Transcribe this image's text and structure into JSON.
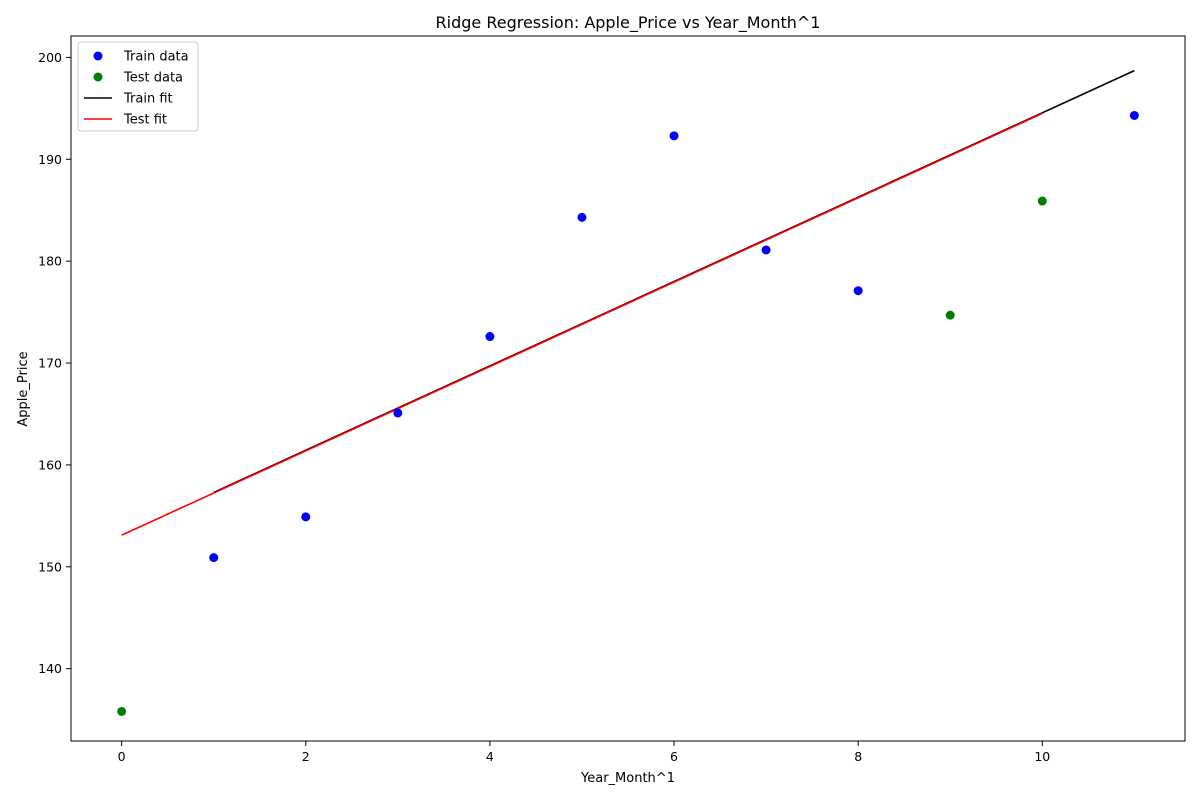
{
  "chart_data": {
    "type": "scatter",
    "title": "Ridge Regression: Apple_Price vs Year_Month^1",
    "xlabel": "Year_Month^1",
    "ylabel": "Apple_Price",
    "xlim": [
      -0.55,
      11.55
    ],
    "ylim": [
      132.9,
      202.1
    ],
    "xticks": [
      0,
      2,
      4,
      6,
      8,
      10
    ],
    "yticks": [
      140,
      150,
      160,
      170,
      180,
      190,
      200
    ],
    "grid": false,
    "legend_position": "upper left",
    "series": [
      {
        "name": "Train data",
        "kind": "scatter",
        "color": "#0000ff",
        "x": [
          1,
          2,
          3,
          4,
          5,
          6,
          7,
          8,
          11
        ],
        "y": [
          150.9,
          154.9,
          165.1,
          172.6,
          184.3,
          192.3,
          181.1,
          177.1,
          194.3
        ]
      },
      {
        "name": "Test data",
        "kind": "scatter",
        "color": "#008000",
        "x": [
          0,
          9,
          10
        ],
        "y": [
          135.8,
          174.7,
          185.9
        ]
      },
      {
        "name": "Train fit",
        "kind": "line",
        "color": "#000000",
        "x": [
          1,
          11
        ],
        "y": [
          157.3,
          198.7
        ]
      },
      {
        "name": "Test fit",
        "kind": "line",
        "color": "#ff0000",
        "x": [
          0,
          10
        ],
        "y": [
          153.1,
          194.5
        ]
      }
    ]
  }
}
